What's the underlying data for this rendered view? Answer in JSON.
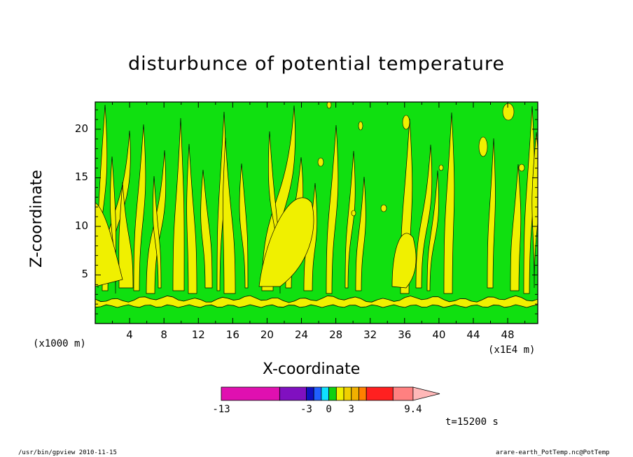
{
  "chart_data": {
    "type": "heatmap",
    "title": "disturbunce of potential temperature",
    "xlabel": "X-coordinate",
    "ylabel": "Z-coordinate",
    "x_unit_left": "(x1000 m)",
    "x_unit_right": "(x1E4 m)",
    "x_ticks": [
      "4",
      "8",
      "12",
      "16",
      "20",
      "24",
      "28",
      "32",
      "36",
      "40",
      "44",
      "48"
    ],
    "y_ticks": [
      "5",
      "10",
      "15",
      "20"
    ],
    "xlim": [
      0,
      51.5
    ],
    "ylim": [
      0,
      22.8
    ],
    "time_label": "t=15200 s",
    "colorbar": {
      "labels": [
        "-13",
        "-3",
        "0",
        "3",
        "9.4"
      ],
      "bins": [
        {
          "color": "#e010b0",
          "width": 3.5
        },
        {
          "color": "#8010c0",
          "width": 1.6
        },
        {
          "color": "#1010c0",
          "width": 0.45
        },
        {
          "color": "#2060ff",
          "width": 0.45
        },
        {
          "color": "#10e0ff",
          "width": 0.45
        },
        {
          "color": "#10d010",
          "width": 0.45
        },
        {
          "color": "#f0f000",
          "width": 0.45
        },
        {
          "color": "#f0d000",
          "width": 0.45
        },
        {
          "color": "#f0b000",
          "width": 0.45
        },
        {
          "color": "#ff8000",
          "width": 0.45
        },
        {
          "color": "#ff2020",
          "width": 1.6
        },
        {
          "color": "#ff8080",
          "width": 1.2
        },
        {
          "color": "#ffb8b8",
          "width": 1.6
        }
      ]
    },
    "field_colors": {
      "low": "#10e010",
      "high": "#f0f000"
    }
  },
  "footer": {
    "left": "/usr/bin/gpview   2010-11-15",
    "right": "arare-earth_PotTemp.nc@PotTemp"
  }
}
